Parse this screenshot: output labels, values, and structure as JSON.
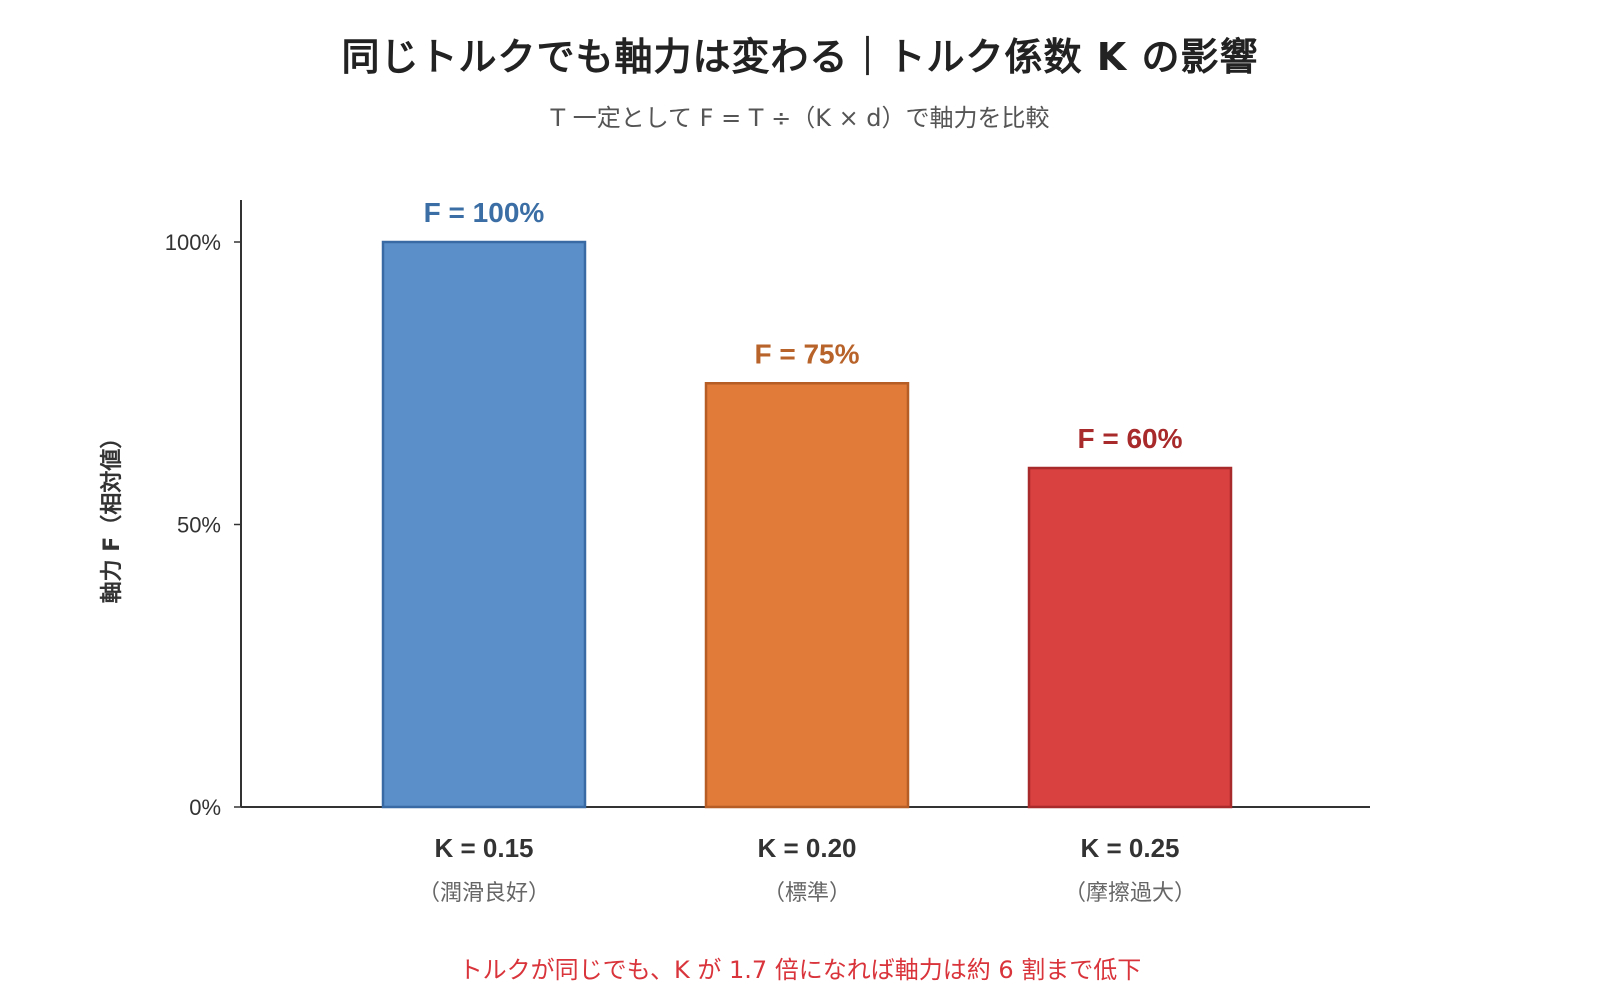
{
  "title": "同じトルクでも軸力は変わる｜トルク係数 K の影響",
  "subtitle": "T 一定として F = T ÷（K × d）で軸力を比較",
  "note": "トルクが同じでも、K が 1.7 倍になれば軸力は約 6 割まで低下",
  "chart_data": {
    "type": "bar",
    "title": "同じトルクでも軸力は変わる｜トルク係数 K の影響",
    "subtitle": "T 一定として F = T ÷（K × d）で軸力を比較",
    "xlabel": "",
    "ylabel": "軸力 F（相対値）",
    "ylim": [
      0,
      100
    ],
    "yticks": [
      {
        "value": 0,
        "label": "0%"
      },
      {
        "value": 50,
        "label": "50%"
      },
      {
        "value": 100,
        "label": "100%"
      }
    ],
    "categories": [
      "K = 0.15",
      "K = 0.20",
      "K = 0.25"
    ],
    "sublabels": [
      "（潤滑良好）",
      "（標準）",
      "（摩擦過大）"
    ],
    "values": [
      100,
      75,
      60
    ],
    "data_labels": [
      "F = 100%",
      "F = 75%",
      "F = 60%"
    ],
    "colors": [
      "#5b8fc9",
      "#e07b39",
      "#d94040"
    ],
    "edge_colors": [
      "#3a6aa3",
      "#b55d24",
      "#a82a2a"
    ],
    "label_colors": [
      "#3b6ea5",
      "#b8632a",
      "#a82a2a"
    ],
    "grid": false
  }
}
